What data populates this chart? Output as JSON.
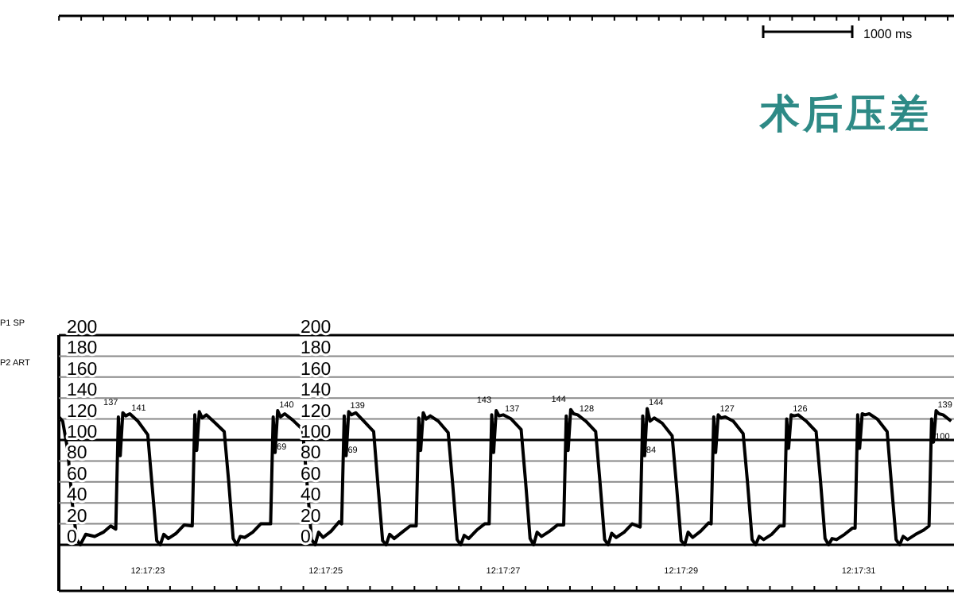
{
  "chart_data": {
    "type": "line",
    "title": "术后压差",
    "annotations": [
      "P1 SP",
      "1000 ms",
      {
        "text": "137",
        "x": 12.289644,
        "y": 126
      },
      {
        "text": "141",
        "x": 12.289666,
        "y": 125
      },
      {
        "text": "140",
        "x": 12.290128,
        "y": 128
      },
      {
        "text": "69",
        "x": 12.29012,
        "y": 88
      },
      {
        "text": "139",
        "x": 12.29035,
        "y": 127
      },
      {
        "text": "69",
        "x": 12.290342,
        "y": 85
      },
      {
        "text": "143",
        "x": 12.290811,
        "y": 128
      },
      {
        "text": "137",
        "x": 12.290833,
        "y": 124
      },
      {
        "text": "144",
        "x": 12.291044,
        "y": 129
      },
      {
        "text": "128",
        "x": 12.291066,
        "y": 124
      },
      {
        "text": "144",
        "x": 12.291283,
        "y": 130
      },
      {
        "text": "84",
        "x": 12.291275,
        "y": 85
      },
      {
        "text": "127",
        "x": 12.291505,
        "y": 124
      },
      {
        "text": "126",
        "x": 12.291733,
        "y": 124
      },
      {
        "text": "139",
        "x": 12.292186,
        "y": 128
      },
      {
        "text": "100",
        "x": 12.292178,
        "y": 98
      }
    ],
    "series": [
      {
        "name": "P2 ART",
        "color": "#000000",
        "x": [
          12.289444,
          12.289456,
          12.289472,
          12.289486,
          12.2895,
          12.289511,
          12.289528,
          12.289556,
          12.289583,
          12.289606,
          12.289622,
          12.28963,
          12.289636,
          12.289644,
          12.289653,
          12.289666,
          12.289691,
          12.289722,
          12.289736,
          12.28975,
          12.289761,
          12.289772,
          12.289786,
          12.289811,
          12.289836,
          12.289861,
          12.289869,
          12.289875,
          12.289883,
          12.289892,
          12.289905,
          12.28993,
          12.289961,
          12.289975,
          12.289989,
          12.29,
          12.290011,
          12.290025,
          12.29005,
          12.290075,
          12.290106,
          12.290114,
          12.29012,
          12.290128,
          12.290137,
          12.29015,
          12.290175,
          12.290206,
          12.29022,
          12.290234,
          12.290245,
          12.290256,
          12.29027,
          12.290295,
          12.29032,
          12.290328,
          12.290336,
          12.290342,
          12.29035,
          12.290359,
          12.290372,
          12.290397,
          12.290428,
          12.290442,
          12.290456,
          12.290467,
          12.290478,
          12.290492,
          12.290517,
          12.290542,
          12.290561,
          12.290569,
          12.290575,
          12.290583,
          12.290592,
          12.290605,
          12.29063,
          12.290661,
          12.290675,
          12.290689,
          12.2907,
          12.290711,
          12.290725,
          12.29075,
          12.290775,
          12.290789,
          12.290797,
          12.290803,
          12.290811,
          12.29082,
          12.290833,
          12.290858,
          12.290889,
          12.290903,
          12.290917,
          12.290928,
          12.290939,
          12.290953,
          12.290978,
          12.291003,
          12.291022,
          12.29103,
          12.291036,
          12.291044,
          12.291053,
          12.291066,
          12.291091,
          12.291122,
          12.291136,
          12.29115,
          12.291161,
          12.291172,
          12.291186,
          12.291211,
          12.291236,
          12.291261,
          12.291269,
          12.291275,
          12.291283,
          12.291292,
          12.291305,
          12.29133,
          12.291361,
          12.291375,
          12.291389,
          12.2914,
          12.291411,
          12.291425,
          12.29145,
          12.291475,
          12.291483,
          12.291491,
          12.291497,
          12.291505,
          12.291514,
          12.291527,
          12.291552,
          12.291583,
          12.291597,
          12.291611,
          12.291622,
          12.291633,
          12.291647,
          12.291672,
          12.291697,
          12.291711,
          12.291719,
          12.291725,
          12.291733,
          12.291742,
          12.291755,
          12.29178,
          12.291811,
          12.291825,
          12.291839,
          12.29185,
          12.291861,
          12.291875,
          12.2919,
          12.291925,
          12.291933,
          12.291941,
          12.291947,
          12.291955,
          12.291964,
          12.291977,
          12.292002,
          12.292033,
          12.292047,
          12.292061,
          12.292072,
          12.292083,
          12.292097,
          12.292122,
          12.292147,
          12.292164,
          12.292172,
          12.292178,
          12.292186,
          12.292195,
          12.292208,
          12.292233
        ],
        "values": [
          122,
          118,
          90,
          40,
          5,
          0,
          10,
          8,
          12,
          18,
          15,
          122,
          85,
          126,
          123,
          125,
          118,
          105,
          55,
          4,
          0,
          10,
          6,
          11,
          19,
          18,
          124,
          90,
          127,
          121,
          124,
          117,
          108,
          60,
          6,
          0,
          8,
          7,
          12,
          20,
          20,
          122,
          88,
          128,
          122,
          125,
          119,
          110,
          58,
          5,
          0,
          12,
          7,
          13,
          22,
          20,
          123,
          85,
          127,
          124,
          126,
          118,
          108,
          55,
          4,
          0,
          10,
          6,
          12,
          18,
          18,
          121,
          90,
          126,
          120,
          123,
          118,
          107,
          58,
          5,
          0,
          9,
          6,
          14,
          20,
          20,
          124,
          88,
          128,
          123,
          124,
          120,
          110,
          60,
          6,
          0,
          12,
          8,
          13,
          19,
          19,
          123,
          90,
          129,
          125,
          124,
          118,
          108,
          58,
          5,
          0,
          11,
          7,
          12,
          20,
          17,
          123,
          85,
          130,
          118,
          121,
          116,
          104,
          55,
          4,
          0,
          12,
          7,
          13,
          21,
          20,
          122,
          88,
          124,
          121,
          122,
          118,
          106,
          58,
          5,
          0,
          8,
          5,
          10,
          18,
          18,
          120,
          92,
          124,
          123,
          124,
          118,
          108,
          60,
          6,
          0,
          6,
          5,
          10,
          16,
          16,
          124,
          92,
          125,
          124,
          125,
          120,
          108,
          56,
          5,
          0,
          8,
          5,
          10,
          14,
          18,
          120,
          98,
          128,
          125,
          124,
          118
        ]
      }
    ],
    "xlim": [
      12.289444,
      12.292242
    ],
    "xticks": [
      {
        "value": 12.289722,
        "label": "12:17:23"
      },
      {
        "value": 12.290278,
        "label": "12:17:25"
      },
      {
        "value": 12.290833,
        "label": "12:17:27"
      },
      {
        "value": 12.291389,
        "label": "12:17:29"
      },
      {
        "value": 12.291944,
        "label": "12:17:31"
      }
    ],
    "ylim": [
      0,
      200
    ],
    "y2lim": [
      0,
      200
    ],
    "y2ticks": [
      0,
      20,
      40,
      60,
      80,
      100,
      120,
      140,
      160,
      180,
      200
    ],
    "yticks": [
      0,
      20,
      40,
      60,
      80,
      100,
      120,
      140,
      160,
      180,
      200
    ],
    "ref_lines": [
      {
        "axis": "y",
        "value": 100,
        "color": "#000000"
      }
    ],
    "grid": "y"
  }
}
